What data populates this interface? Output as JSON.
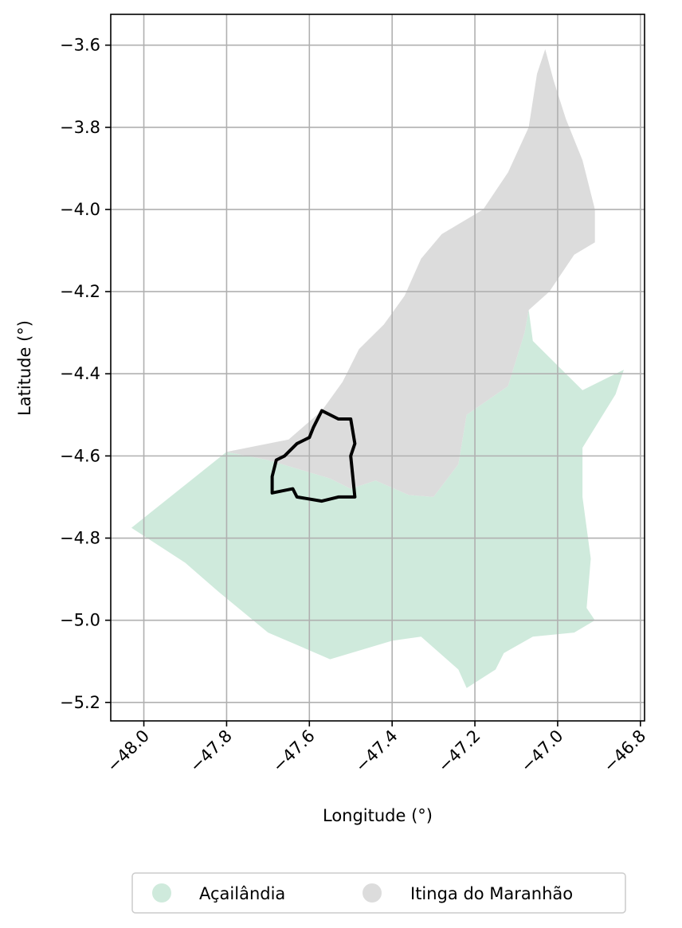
{
  "chart_data": {
    "type": "map",
    "xlabel": "Longitude (°)",
    "ylabel": "Latitude (°)",
    "xlim": [
      -48.08,
      -46.79
    ],
    "ylim": [
      -5.245,
      -3.525
    ],
    "xticks": [
      -48.0,
      -47.8,
      -47.6,
      -47.4,
      -47.2,
      -47.0,
      -46.8
    ],
    "xtick_labels": [
      "−48.0",
      "−47.8",
      "−47.6",
      "−47.4",
      "−47.2",
      "−47.0",
      "−46.8"
    ],
    "yticks": [
      -3.6,
      -3.8,
      -4.0,
      -4.2,
      -4.4,
      -4.6,
      -4.8,
      -5.0,
      -5.2
    ],
    "ytick_labels": [
      "−3.6",
      "−3.8",
      "−4.0",
      "−4.2",
      "−4.4",
      "−4.6",
      "−4.8",
      "−5.0",
      "−5.2"
    ],
    "grid": true,
    "legend_placement": "bottom-center",
    "series": [
      {
        "name": "Açailândia",
        "color": "#cfeadc",
        "polygon": [
          [
            -48.03,
            -4.775
          ],
          [
            -47.8,
            -4.59
          ],
          [
            -47.7,
            -4.61
          ],
          [
            -47.55,
            -4.655
          ],
          [
            -47.5,
            -4.68
          ],
          [
            -47.44,
            -4.66
          ],
          [
            -47.36,
            -4.695
          ],
          [
            -47.3,
            -4.7
          ],
          [
            -47.24,
            -4.62
          ],
          [
            -47.22,
            -4.5
          ],
          [
            -47.12,
            -4.43
          ],
          [
            -47.08,
            -4.3
          ],
          [
            -47.07,
            -4.245
          ],
          [
            -47.06,
            -4.32
          ],
          [
            -46.98,
            -4.4
          ],
          [
            -46.94,
            -4.44
          ],
          [
            -46.84,
            -4.39
          ],
          [
            -46.86,
            -4.45
          ],
          [
            -46.94,
            -4.58
          ],
          [
            -46.94,
            -4.7
          ],
          [
            -46.92,
            -4.85
          ],
          [
            -46.93,
            -4.97
          ],
          [
            -46.91,
            -5.0
          ],
          [
            -46.96,
            -5.03
          ],
          [
            -47.06,
            -5.04
          ],
          [
            -47.13,
            -5.08
          ],
          [
            -47.15,
            -5.12
          ],
          [
            -47.22,
            -5.165
          ],
          [
            -47.24,
            -5.12
          ],
          [
            -47.33,
            -5.04
          ],
          [
            -47.4,
            -5.05
          ],
          [
            -47.55,
            -5.095
          ],
          [
            -47.63,
            -5.06
          ],
          [
            -47.7,
            -5.03
          ],
          [
            -47.82,
            -4.93
          ],
          [
            -47.9,
            -4.86
          ]
        ]
      },
      {
        "name": "Itinga do Maranhão",
        "color": "#dcdcdc",
        "polygon": [
          [
            -47.8,
            -4.59
          ],
          [
            -47.7,
            -4.61
          ],
          [
            -47.55,
            -4.655
          ],
          [
            -47.5,
            -4.68
          ],
          [
            -47.44,
            -4.66
          ],
          [
            -47.36,
            -4.695
          ],
          [
            -47.3,
            -4.7
          ],
          [
            -47.24,
            -4.62
          ],
          [
            -47.22,
            -4.5
          ],
          [
            -47.12,
            -4.43
          ],
          [
            -47.08,
            -4.3
          ],
          [
            -47.07,
            -4.245
          ],
          [
            -47.02,
            -4.2
          ],
          [
            -46.96,
            -4.11
          ],
          [
            -46.91,
            -4.08
          ],
          [
            -46.91,
            -4.0
          ],
          [
            -46.94,
            -3.88
          ],
          [
            -46.98,
            -3.78
          ],
          [
            -47.01,
            -3.685
          ],
          [
            -47.03,
            -3.61
          ],
          [
            -47.05,
            -3.67
          ],
          [
            -47.07,
            -3.8
          ],
          [
            -47.12,
            -3.91
          ],
          [
            -47.18,
            -4.0
          ],
          [
            -47.28,
            -4.06
          ],
          [
            -47.33,
            -4.12
          ],
          [
            -47.37,
            -4.21
          ],
          [
            -47.42,
            -4.28
          ],
          [
            -47.48,
            -4.34
          ],
          [
            -47.52,
            -4.42
          ],
          [
            -47.57,
            -4.49
          ],
          [
            -47.65,
            -4.56
          ]
        ]
      }
    ],
    "highlight_outline": {
      "color": "#000000",
      "polygon": [
        [
          -47.57,
          -4.49
        ],
        [
          -47.53,
          -4.51
        ],
        [
          -47.5,
          -4.51
        ],
        [
          -47.49,
          -4.57
        ],
        [
          -47.5,
          -4.6
        ],
        [
          -47.49,
          -4.7
        ],
        [
          -47.53,
          -4.7
        ],
        [
          -47.57,
          -4.71
        ],
        [
          -47.63,
          -4.7
        ],
        [
          -47.64,
          -4.68
        ],
        [
          -47.69,
          -4.69
        ],
        [
          -47.69,
          -4.65
        ],
        [
          -47.68,
          -4.61
        ],
        [
          -47.66,
          -4.6
        ],
        [
          -47.63,
          -4.57
        ],
        [
          -47.6,
          -4.555
        ],
        [
          -47.59,
          -4.53
        ]
      ]
    }
  }
}
